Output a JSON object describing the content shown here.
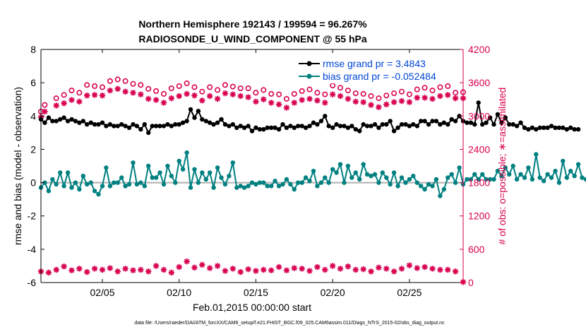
{
  "chart_data": {
    "type": "line",
    "title": "Northern Hemisphere 192143 / 199594 = 96.267%",
    "subtitle": "RADIOSONDE_U_WIND_COMPONENT @ 55 hPa",
    "xlabel": "Feb.01,2015 00:00:00 start",
    "ylabel_left": "rmse and bias (model - observation)",
    "ylabel_right": "# of obs: o=possible; ∗=assimilated",
    "footnote": "data file: /Users/raeder/DAI/ATM_forcXX/CAM6_setup/f.e21.FHIST_BGC.f09_025.CAM6assim.011/Diags_NTrS_2015-02/obs_diag_output.nc",
    "xlim": [
      1,
      28.5
    ],
    "ylim_left": [
      -6,
      8
    ],
    "ylim_right": [
      0,
      4200
    ],
    "left_ticks": [
      "-6",
      "-4",
      "-2",
      "0",
      "2",
      "4",
      "6",
      "8"
    ],
    "right_ticks": [
      "0",
      "600",
      "1200",
      "1800",
      "2400",
      "3000",
      "3600",
      "4200"
    ],
    "x_ticks": [
      {
        "day": 5,
        "label": "02/05"
      },
      {
        "day": 10,
        "label": "02/10"
      },
      {
        "day": 15,
        "label": "02/15"
      },
      {
        "day": 20,
        "label": "02/20"
      },
      {
        "day": 25,
        "label": "02/25"
      }
    ],
    "legend": [
      {
        "name": "rmse grand pr = 3.4843",
        "color": "#000000"
      },
      {
        "name": "bias grand pr = -0.052484",
        "color": "#008080"
      }
    ],
    "colors": {
      "rmse": "#000000",
      "bias": "#008080",
      "obs": "#d9004f",
      "zero": "#b0b0b0",
      "right_axis": "#d9004f"
    },
    "x_start": 1,
    "x_step": 0.25,
    "series": [
      {
        "name": "rmse",
        "axis": "left",
        "values": [
          3.8,
          3.6,
          3.9,
          3.7,
          3.7,
          3.8,
          3.9,
          3.7,
          3.8,
          3.7,
          3.6,
          3.7,
          3.5,
          3.6,
          3.5,
          3.5,
          3.6,
          3.4,
          3.5,
          3.4,
          3.4,
          3.5,
          3.4,
          3.3,
          3.5,
          3.4,
          3.2,
          3.5,
          3.0,
          3.4,
          3.4,
          3.4,
          3.4,
          3.5,
          3.4,
          3.5,
          3.5,
          3.6,
          3.7,
          4.4,
          3.9,
          4.3,
          3.8,
          3.7,
          3.6,
          3.5,
          3.6,
          3.8,
          3.5,
          3.4,
          3.5,
          3.3,
          3.4,
          3.3,
          3.4,
          3.1,
          3.3,
          3.2,
          3.2,
          3.3,
          3.3,
          3.3,
          3.2,
          3.5,
          3.3,
          3.4,
          3.3,
          3.4,
          3.4,
          3.3,
          3.4,
          3.6,
          3.5,
          3.7,
          4.0,
          3.4,
          3.3,
          3.5,
          3.4,
          3.4,
          3.3,
          3.4,
          3.2,
          3.1,
          3.5,
          3.4,
          3.4,
          3.5,
          3.3,
          3.5,
          3.5,
          3.7,
          3.1,
          3.3,
          3.5,
          3.5,
          3.4,
          3.5,
          3.4,
          3.7,
          3.7,
          3.5,
          3.7,
          3.7,
          3.5,
          3.6,
          3.5,
          3.8,
          3.7,
          4.0,
          3.7,
          3.6,
          3.6,
          3.5,
          4.8,
          3.5,
          3.6,
          3.9,
          3.5,
          4.1,
          3.6,
          3.9,
          3.5,
          3.5,
          3.4,
          3.6,
          3.3,
          3.2,
          3.3,
          3.2,
          3.3,
          3.3,
          3.3,
          3.4,
          3.3,
          3.3,
          3.3,
          3.2,
          3.3,
          3.2,
          3.2
        ]
      },
      {
        "name": "bias",
        "axis": "left",
        "values": [
          -0.3,
          0.0,
          -0.5,
          0.2,
          -0.1,
          0.6,
          -0.2,
          0.6,
          -0.3,
          0.0,
          -0.4,
          0.4,
          -0.1,
          0.0,
          -0.5,
          -0.7,
          -0.2,
          0.9,
          -0.2,
          0.0,
          0.0,
          0.3,
          -0.2,
          -0.1,
          1.2,
          -0.1,
          0.0,
          -0.2,
          1.0,
          0.3,
          0.3,
          0.6,
          -0.1,
          1.0,
          0.4,
          0.0,
          1.3,
          0.8,
          1.8,
          -0.3,
          0.8,
          0.0,
          0.6,
          0.2,
          0.6,
          -0.3,
          0.9,
          0.3,
          -0.1,
          0.4,
          1.2,
          -0.3,
          -0.2,
          -0.3,
          -0.2,
          0.0,
          -0.1,
          0.0,
          0.0,
          -0.2,
          -0.2,
          0.1,
          -0.2,
          -0.1,
          0.2,
          -0.1,
          -0.4,
          0.0,
          0.0,
          0.3,
          0.1,
          0.7,
          -0.2,
          0.0,
          0.3,
          0.0,
          0.8,
          0.6,
          1.1,
          0.0,
          1.0,
          0.3,
          0.6,
          0.2,
          1.1,
          0.5,
          0.4,
          0.5,
          0.0,
          0.6,
          0.3,
          -0.1,
          0.6,
          -0.2,
          0.3,
          0.0,
          0.2,
          0.4,
          0.0,
          -0.2,
          -0.4,
          -0.1,
          -0.2,
          0.2,
          -0.8,
          -0.4,
          0.3,
          0.5,
          0.0,
          0.9,
          -0.1,
          0.2,
          0.2,
          0.5,
          0.2,
          0.5,
          0.2,
          0.2,
          0.2,
          0.7,
          0.4,
          0.9,
          0.5,
          1.0,
          0.2,
          0.5,
          0.3,
          0.9,
          0.2,
          1.7,
          0.3,
          0.1,
          0.5,
          0.3,
          0.7,
          0.0,
          1.3,
          0.3,
          0.7,
          0.4,
          1.1,
          0.3,
          0.2,
          0.2,
          0.1
        ]
      },
      {
        "name": "possible",
        "axis": "right",
        "marker": "o",
        "x": [
          1,
          1.25,
          2,
          2.5,
          3,
          3.5,
          4,
          4.5,
          5,
          5.5,
          6,
          6.5,
          7,
          7.5,
          8,
          8.5,
          9,
          9.5,
          10,
          10.5,
          11,
          11.5,
          12,
          12.5,
          13,
          13.5,
          14,
          14.5,
          15,
          15.5,
          16,
          16.5,
          17,
          17.5,
          18,
          18.5,
          19,
          19.5,
          20,
          20.5,
          21,
          21.5,
          22,
          22.5,
          23,
          23.5,
          24,
          24.5,
          25,
          25.5,
          26,
          26.5,
          27,
          27.5,
          28,
          28.5
        ],
        "values": [
          3080,
          3200,
          3320,
          3380,
          3460,
          3420,
          3560,
          3540,
          3520,
          3630,
          3660,
          3630,
          3580,
          3560,
          3490,
          3450,
          3400,
          3500,
          3540,
          3590,
          3520,
          3440,
          3520,
          3470,
          3560,
          3530,
          3500,
          3500,
          3420,
          3470,
          3400,
          3390,
          3310,
          3400,
          3450,
          3480,
          3420,
          3390,
          3550,
          3510,
          3460,
          3410,
          3400,
          3360,
          3320,
          3370,
          3410,
          3440,
          3390,
          3480,
          3510,
          3460,
          3520,
          3540,
          3420,
          3430
        ]
      },
      {
        "name": "assimilated",
        "axis": "right",
        "marker": "*",
        "x": [
          1,
          1.25,
          2,
          2.5,
          3,
          3.5,
          4,
          4.5,
          5,
          5.5,
          6,
          6.5,
          7,
          7.5,
          8,
          8.5,
          9,
          9.5,
          10,
          10.5,
          11,
          11.5,
          12,
          12.5,
          13,
          13.5,
          14,
          14.5,
          15,
          15.5,
          16,
          16.5,
          17,
          17.5,
          18,
          18.5,
          19,
          19.5,
          20,
          20.5,
          21,
          21.5,
          22,
          22.5,
          23,
          23.5,
          24,
          24.5,
          25,
          25.5,
          26,
          26.5,
          27,
          27.5,
          28,
          28.5
        ],
        "values": [
          2980,
          3080,
          3190,
          3230,
          3290,
          3260,
          3370,
          3380,
          3370,
          3460,
          3490,
          3440,
          3420,
          3390,
          3310,
          3290,
          3240,
          3320,
          3360,
          3400,
          3370,
          3280,
          3360,
          3310,
          3410,
          3390,
          3360,
          3340,
          3260,
          3300,
          3240,
          3210,
          3150,
          3240,
          3290,
          3310,
          3280,
          3240,
          3390,
          3360,
          3310,
          3260,
          3250,
          3200,
          3160,
          3210,
          3250,
          3270,
          3250,
          3330,
          3330,
          3310,
          3360,
          3380,
          3320,
          3320
        ]
      },
      {
        "name": "obs near zero",
        "axis": "right",
        "marker": "*",
        "x": [
          1,
          1.5,
          2,
          2.5,
          3,
          3.5,
          4,
          4.5,
          5,
          5.5,
          6,
          6.5,
          7,
          7.5,
          8,
          8.5,
          9,
          9.5,
          10,
          10.5,
          11,
          11.5,
          12,
          12.5,
          13,
          13.5,
          14,
          14.5,
          15,
          15.5,
          16,
          16.5,
          17,
          17.5,
          18,
          18.5,
          19,
          19.5,
          20,
          20.5,
          21,
          21.5,
          22,
          22.5,
          23,
          23.5,
          24,
          24.5,
          25,
          25.5,
          26,
          26.5,
          27,
          27.5,
          28,
          28.5
        ],
        "values": [
          200,
          180,
          230,
          290,
          220,
          250,
          190,
          250,
          230,
          260,
          200,
          250,
          220,
          230,
          200,
          300,
          230,
          180,
          280,
          380,
          270,
          320,
          260,
          300,
          210,
          250,
          190,
          240,
          210,
          230,
          220,
          280,
          220,
          260,
          250,
          210,
          280,
          230,
          300,
          250,
          290,
          230,
          240,
          200,
          270,
          250,
          200,
          250,
          310,
          260,
          280,
          250,
          230,
          230,
          200,
          10
        ]
      }
    ]
  }
}
